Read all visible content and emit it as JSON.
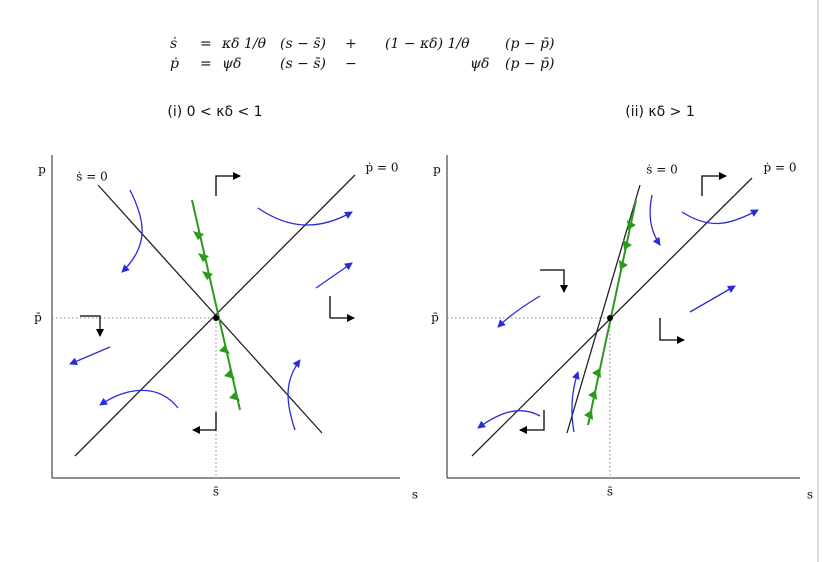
{
  "equations": [
    {
      "lhs": "ṡ",
      "eq": "=",
      "term1": "κδ 1/θ",
      "diff1": "(s − s̄)",
      "op": "+",
      "term2": "(1 − κδ) 1/θ",
      "diff2": "(p − p̄)"
    },
    {
      "lhs": "ṗ",
      "eq": "=",
      "term1": "ψδ",
      "diff1": "(s − s̄)",
      "op": "−",
      "term2": "ψδ",
      "diff2": "(p − p̄)"
    }
  ],
  "panels": [
    {
      "title": "(i) 0 < κδ < 1",
      "y_axis": "p",
      "x_axis": "s",
      "y_star": "p̄",
      "x_star": "s̄",
      "s_locus": "ṡ = 0",
      "p_locus": "ṗ = 0"
    },
    {
      "title": "(ii) κδ > 1",
      "y_axis": "p",
      "x_axis": "s",
      "y_star": "p̄",
      "x_star": "s̄",
      "s_locus": "ṡ = 0",
      "p_locus": "ṗ = 0"
    }
  ]
}
